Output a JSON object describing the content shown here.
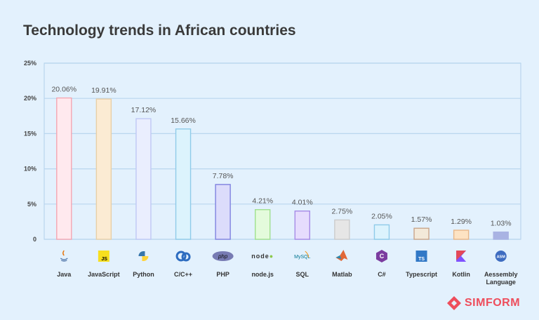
{
  "chart_data": {
    "type": "bar",
    "title": "Technology trends in African countries",
    "categories": [
      "Java",
      "JavaScript",
      "Python",
      "C/C++",
      "PHP",
      "node.js",
      "SQL",
      "Matlab",
      "C#",
      "Typescript",
      "Kotlin",
      "Aessembly Language"
    ],
    "values": [
      20.06,
      19.91,
      17.12,
      15.66,
      7.78,
      4.21,
      4.01,
      2.75,
      2.05,
      1.57,
      1.29,
      1.03
    ],
    "data_labels": [
      "20.06%",
      "19.91%",
      "17.12%",
      "15.66%",
      "7.78%",
      "4.21%",
      "4.01%",
      "2.75%",
      "2.05%",
      "1.57%",
      "1.29%",
      "1.03%"
    ],
    "ylim": [
      0,
      25
    ],
    "yticks": [
      0,
      5,
      10,
      15,
      20,
      25
    ],
    "ytick_labels": [
      "0",
      "5%",
      "10%",
      "15%",
      "20%",
      "25%"
    ],
    "xlabel": "",
    "ylabel": "",
    "grid": true,
    "legend": "none",
    "bar_fill": [
      "#ffe9ee",
      "#fbebd3",
      "#eaeefe",
      "#dcf3fd",
      "#dcdcfb",
      "#e4fbdc",
      "#e6dcfd",
      "#e6e6e6",
      "#dcf3fd",
      "#f3e9d9",
      "#fde3c3",
      "#a9b3e3"
    ],
    "bar_stroke": [
      "#f4a6b2",
      "#e8cfa7",
      "#bfc8f5",
      "#8fcbe9",
      "#7f82e0",
      "#9fe08f",
      "#a68be6",
      "#cccccc",
      "#8fcbe9",
      "#c9a58b",
      "#e8b789",
      "#a9b3e3"
    ],
    "icons": [
      "java-icon",
      "javascript-icon",
      "python-icon",
      "cpp-icon",
      "php-icon",
      "nodejs-icon",
      "mysql-icon",
      "matlab-icon",
      "csharp-icon",
      "typescript-icon",
      "kotlin-icon",
      "assembly-icon"
    ]
  },
  "brand": {
    "name": "SIMFORM",
    "color": "#ee4d5c"
  }
}
